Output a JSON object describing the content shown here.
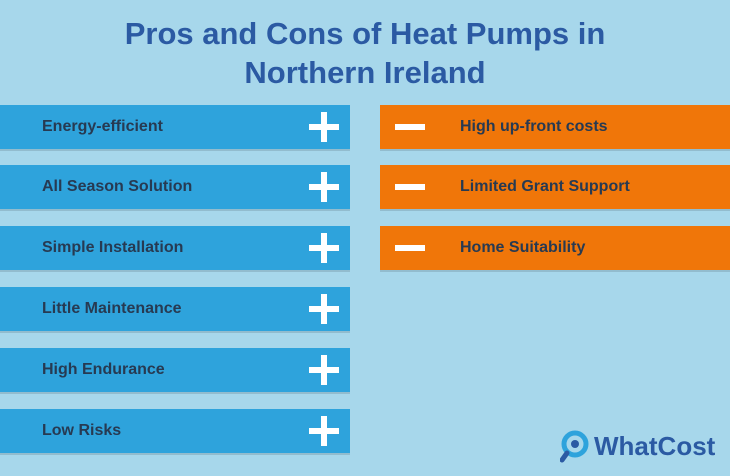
{
  "header": {
    "title_lines": [
      "Pros and Cons of Heat Pumps in",
      "Northern Ireland"
    ]
  },
  "pros": [
    "Energy-efficient",
    "All Season Solution",
    "Simple Installation",
    "Little Maintenance",
    "High Endurance",
    "Low Risks"
  ],
  "cons": [
    "High up-front costs",
    "Limited Grant Support",
    "Home Suitability"
  ],
  "logo": {
    "text": "WhatCost"
  }
}
